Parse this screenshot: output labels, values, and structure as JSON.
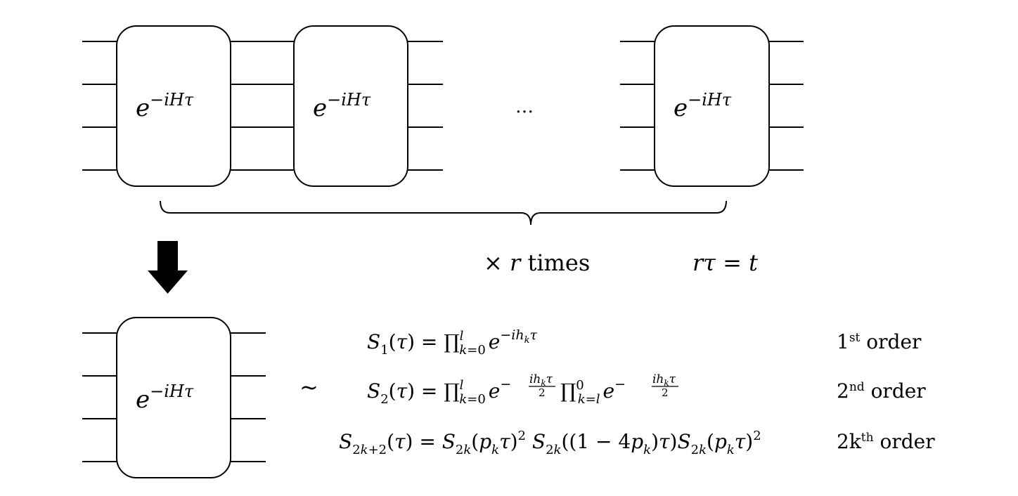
{
  "top_row": {
    "gate_label": "e−iHτ",
    "ellipsis": "…",
    "repeat_label": "× r times",
    "relation": "rτ = t"
  },
  "bottom_row": {
    "gate_label": "e−iHτ",
    "approx_symbol": "~"
  },
  "formulas": [
    {
      "expression": "S1(τ) = ∏lk=0 e−ihkτ",
      "order_label": "1st order"
    },
    {
      "expression": "S2(τ) = ∏lk=0 e−ihkτ/2 ∏0k=l e−ihkτ/2",
      "order_label": "2nd order"
    },
    {
      "expression": "S2k+2(τ) = S2k(pkτ)2 S2k((1 − 4pk)τ)S2k(pkτ)2",
      "order_label": "2kth order"
    }
  ]
}
